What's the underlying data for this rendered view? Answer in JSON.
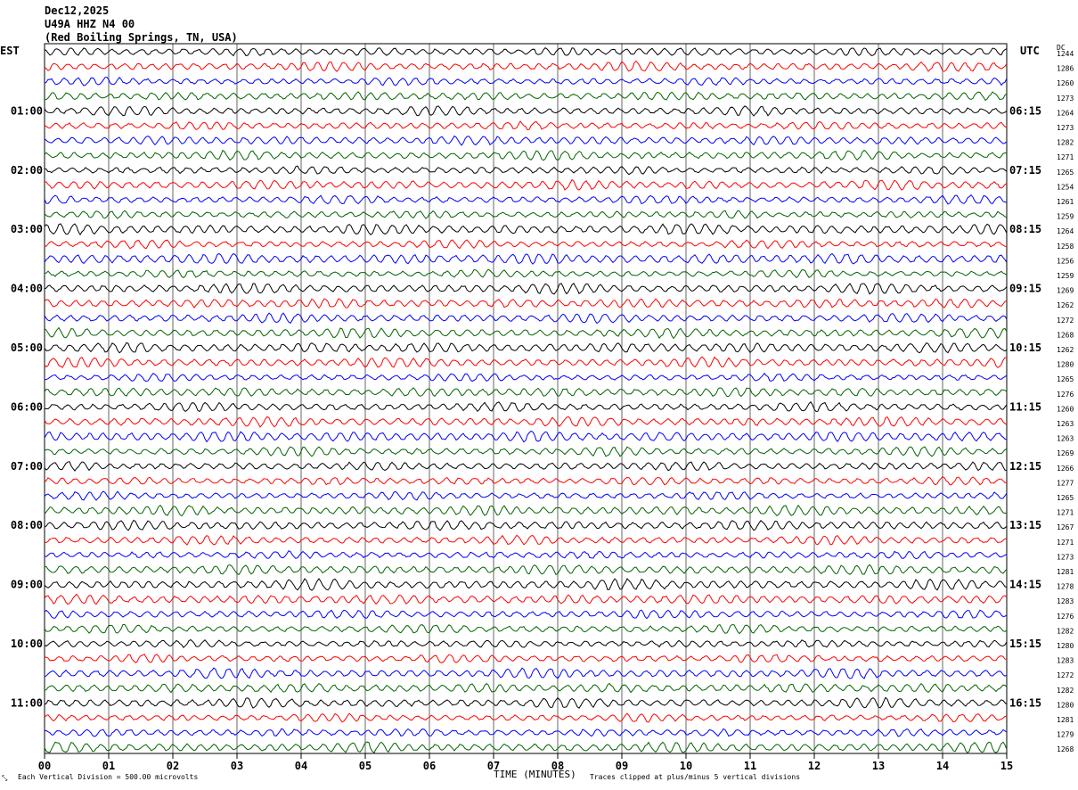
{
  "header": {
    "date": "Dec12,2025",
    "station": "U49A HHZ N4 00",
    "location": "(Red Boiling Springs, TN, USA)"
  },
  "left_axis_label": "EST",
  "right_axis_label": "UTC",
  "dc_label": "DC",
  "footer": {
    "scale_mark": "⤡",
    "scale_note": "Each Vertical Division =  500.00 microvolts",
    "xlabel": "TIME (MINUTES)",
    "clip_note": "Traces clipped at plus/minus 5 vertical divisions"
  },
  "colors": {
    "trace_cycle": [
      "#000000",
      "#ff0000",
      "#0000ff",
      "#006400"
    ],
    "grid": "#000000"
  },
  "chart_data": {
    "type": "line",
    "title": "U49A HHZ N4 00",
    "xlabel": "TIME (MINUTES)",
    "ylabel": "",
    "xlim": [
      0,
      15
    ],
    "x_ticks": [
      "00",
      "01",
      "02",
      "03",
      "04",
      "05",
      "06",
      "07",
      "08",
      "09",
      "10",
      "11",
      "12",
      "13",
      "14",
      "15"
    ],
    "est_hour_labels": [
      "01:00",
      "02:00",
      "03:00",
      "04:00",
      "05:00",
      "06:00",
      "07:00",
      "08:00",
      "09:00",
      "10:00",
      "11:00"
    ],
    "utc_hour_labels": [
      "06:15",
      "07:15",
      "08:15",
      "09:15",
      "10:15",
      "11:15",
      "12:15",
      "13:15",
      "14:15",
      "15:15",
      "16:15"
    ],
    "first_labeled_row": 4,
    "rows_per_hour": 4,
    "dc_offsets": [
      1244,
      1286,
      1260,
      1273,
      1264,
      1273,
      1282,
      1271,
      1265,
      1254,
      1261,
      1259,
      1264,
      1258,
      1256,
      1259,
      1269,
      1262,
      1272,
      1268,
      1262,
      1280,
      1265,
      1276,
      1260,
      1263,
      1263,
      1269,
      1266,
      1277,
      1265,
      1271,
      1267,
      1271,
      1273,
      1281,
      1278,
      1283,
      1276,
      1282,
      1280,
      1283,
      1272,
      1282,
      1280,
      1281,
      1279,
      1268
    ],
    "clip_divisions": 5,
    "microvolts_per_division": 500.0
  }
}
